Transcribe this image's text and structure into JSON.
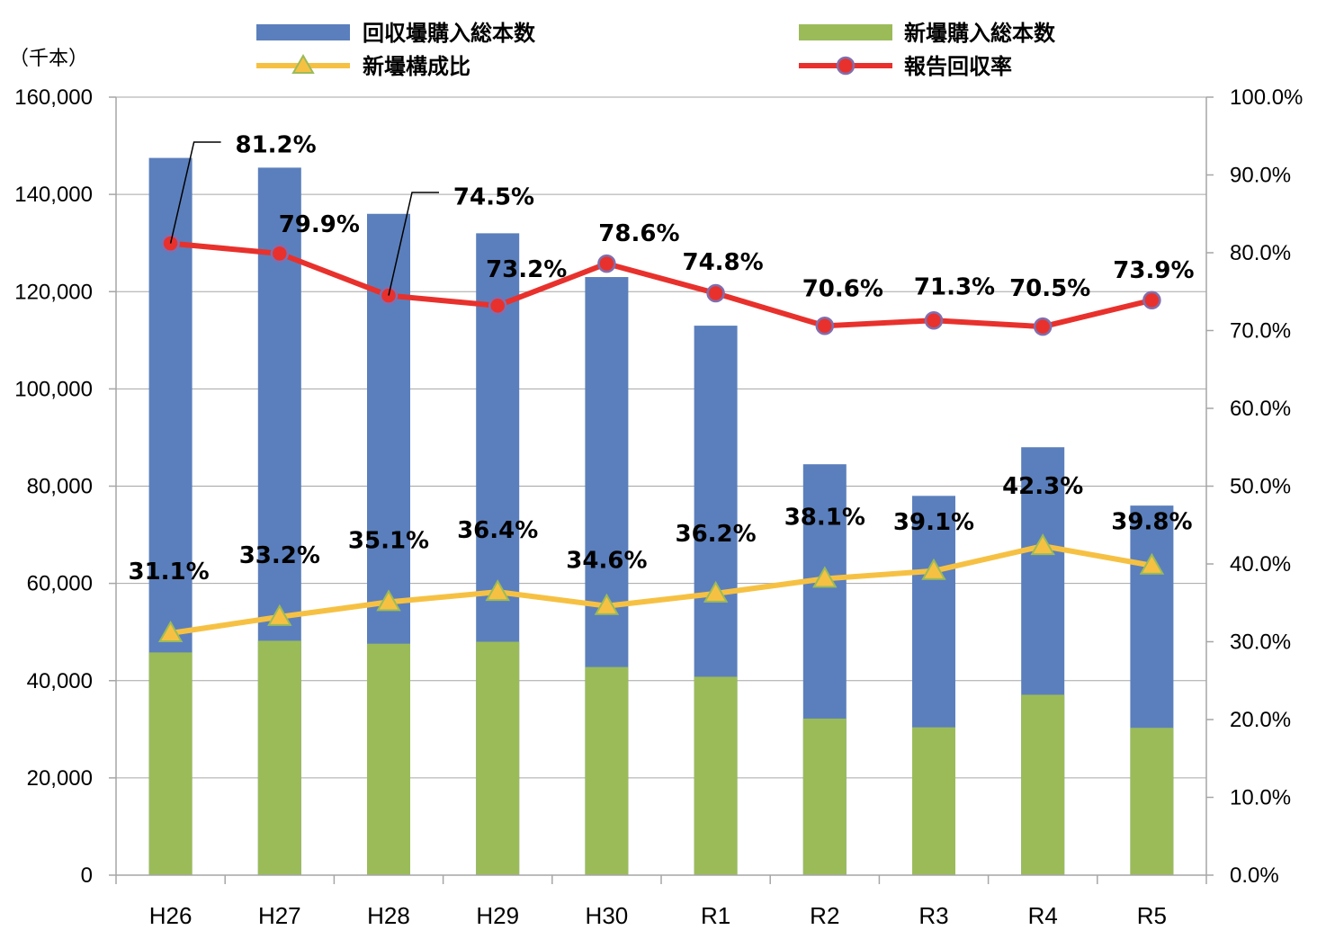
{
  "chart_data": {
    "type": "bar",
    "categories": [
      "H26",
      "H27",
      "H28",
      "H29",
      "H30",
      "R1",
      "R2",
      "R3",
      "R4",
      "R5"
    ],
    "y_left": {
      "unit_label": "（千本）",
      "ylim": [
        0,
        160000
      ],
      "ticks": [
        0,
        20000,
        40000,
        60000,
        80000,
        100000,
        120000,
        140000,
        160000
      ],
      "tick_labels": [
        "0",
        "20,000",
        "40,000",
        "60,000",
        "80,000",
        "100,000",
        "120,000",
        "140,000",
        "160,000"
      ]
    },
    "y_right": {
      "ylim": [
        0,
        100
      ],
      "ticks": [
        0,
        10,
        20,
        30,
        40,
        50,
        60,
        70,
        80,
        90,
        100
      ],
      "tick_labels": [
        "0.0%",
        "10.0%",
        "20.0%",
        "30.0%",
        "40.0%",
        "50.0%",
        "60.0%",
        "70.0%",
        "80.0%",
        "90.0%",
        "100.0%"
      ]
    },
    "series": [
      {
        "name": "回収壜購入総本数",
        "type": "bar",
        "axis": "left",
        "color": "#5b7fbc",
        "values": [
          147500,
          145500,
          136000,
          132000,
          123000,
          113000,
          84500,
          78000,
          88000,
          76000
        ]
      },
      {
        "name": "新壜購入総本数",
        "type": "bar",
        "axis": "left",
        "color": "#9bbb59",
        "values": [
          45800,
          48200,
          47600,
          48000,
          42800,
          40800,
          32200,
          30400,
          37100,
          30300
        ]
      },
      {
        "name": "新壜構成比",
        "type": "line",
        "axis": "right",
        "color": "#f6c143",
        "marker": "triangle",
        "values": [
          31.1,
          33.2,
          35.1,
          36.4,
          34.6,
          36.2,
          38.1,
          39.1,
          42.3,
          39.8
        ],
        "labels": [
          "31.1%",
          "33.2%",
          "35.1%",
          "36.4%",
          "34.6%",
          "36.2%",
          "38.1%",
          "39.1%",
          "42.3%",
          "39.8%"
        ]
      },
      {
        "name": "報告回収率",
        "type": "line",
        "axis": "right",
        "color": "#e8312c",
        "marker": "circle",
        "values": [
          81.2,
          79.9,
          74.5,
          73.2,
          78.6,
          74.8,
          70.6,
          71.3,
          70.5,
          73.9
        ],
        "labels": [
          "81.2%",
          "79.9%",
          "74.5%",
          "73.2%",
          "78.6%",
          "74.8%",
          "70.6%",
          "71.3%",
          "70.5%",
          "73.9%"
        ]
      }
    ],
    "legend_position": "top",
    "grid": "horizontal"
  }
}
